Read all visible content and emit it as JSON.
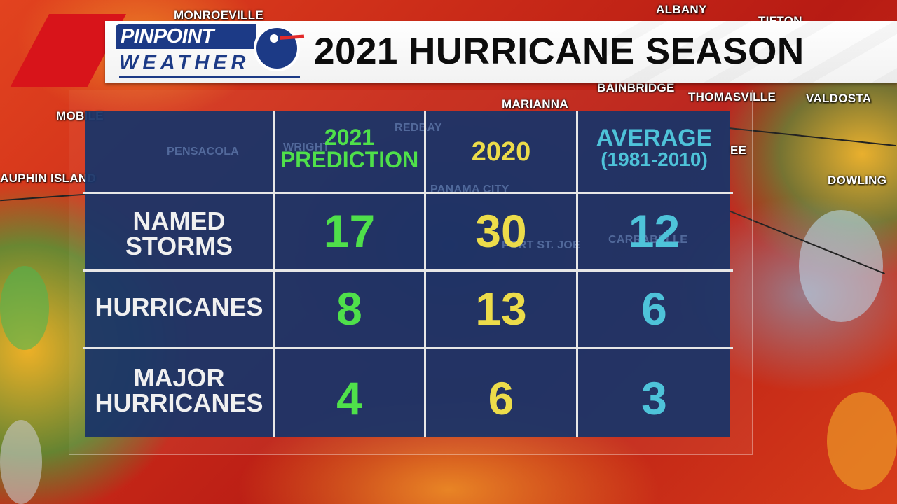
{
  "header": {
    "logo_top": "PINPOINT",
    "logo_bottom": "WEATHER",
    "title": "2021 HURRICANE SEASON"
  },
  "map_labels": {
    "monroeville": "MONROEVILLE",
    "albany": "ALBANY",
    "tifton": "TIFTON",
    "bainbridge": "BAINBRIDGE",
    "thomasville": "THOMASVILLE",
    "valdosta": "VALDOSTA",
    "marianna": "MARIANNA",
    "mobile": "MOBILE",
    "dauphin_island": "AUPHIN ISLAND",
    "dowling": "DOWLING",
    "pensacola": "PENSACOLA",
    "redbay": "REDBAY",
    "wright": "WRIGHT",
    "panama_city": "PANAMA CITY",
    "port_st_joe": "PORT ST. JOE",
    "carrabelle": "CARRABELLE",
    "tallahassee_frag": "EE"
  },
  "table": {
    "columns": [
      {
        "line1": "2021",
        "line2": "PREDICTION",
        "color": "#4fe04a"
      },
      {
        "line1": "2020",
        "line2": "",
        "color": "#ecdc4a"
      },
      {
        "line1": "AVERAGE",
        "line2": "(1981-2010)",
        "color": "#4ec3d9"
      }
    ],
    "rows": [
      {
        "label1": "NAMED",
        "label2": "STORMS",
        "values": [
          "17",
          "30",
          "12"
        ]
      },
      {
        "label1": "HURRICANES",
        "label2": "",
        "values": [
          "8",
          "13",
          "6"
        ]
      },
      {
        "label1": "MAJOR",
        "label2": "HURRICANES",
        "values": [
          "4",
          "6",
          "3"
        ]
      }
    ]
  },
  "colors": {
    "prediction": "#4fe04a",
    "year_2020": "#ecdc4a",
    "average": "#4ec3d9",
    "brand_blue": "#1c3a86",
    "brand_red": "#d8141a"
  }
}
